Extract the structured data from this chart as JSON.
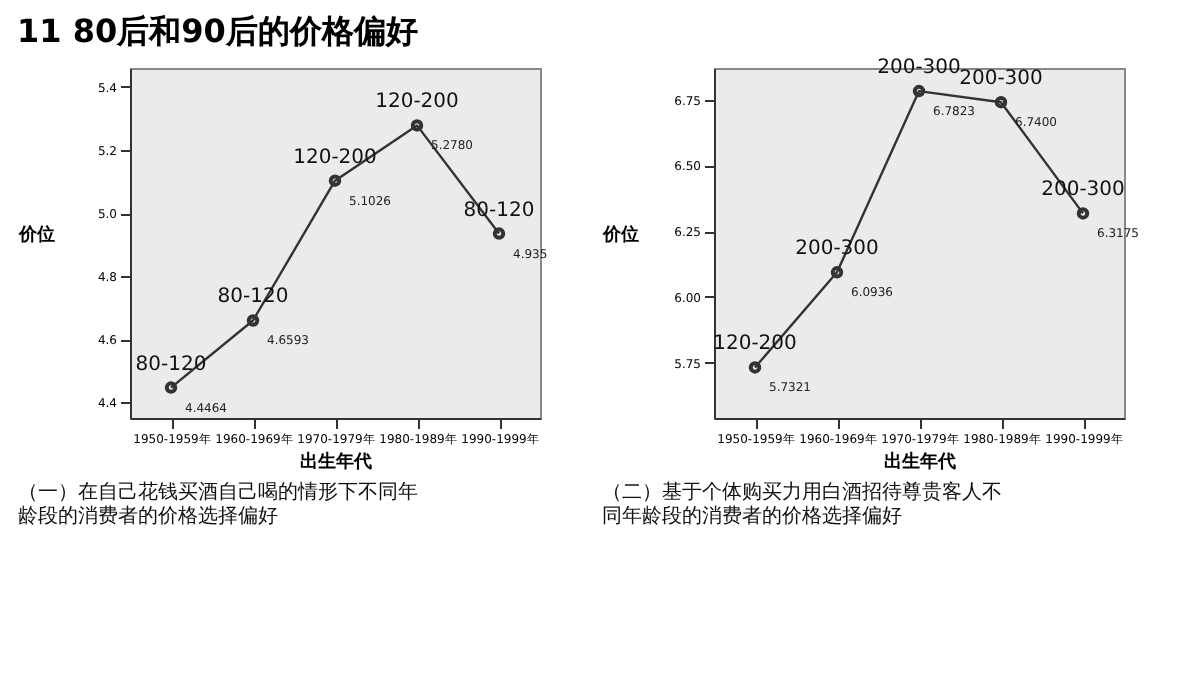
{
  "chart_data": [
    {
      "type": "line",
      "title": "11 80后和90后的价格偏好",
      "xlabel": "出生年代",
      "ylabel": "价位",
      "categories": [
        "1950-1959年",
        "1960-1969年",
        "1970-1979年",
        "1980-1989年",
        "1990-1999年"
      ],
      "series": [
        {
          "color": "#333333",
          "values": [
            4.4464,
            4.6593,
            5.1026,
            5.278,
            4.935
          ]
        }
      ],
      "ylim": [
        4.35,
        5.46
      ],
      "yticks": [
        4.4,
        4.6,
        4.8,
        {
          "value": 5,
          "label": "5.0"
        },
        5.2,
        5.4
      ],
      "marker": "circle",
      "line_style": "solid",
      "grid": false,
      "legend": false,
      "value_labels": [
        "4.4464",
        "4.6593",
        "5.1026",
        "5.2780",
        "4.935"
      ],
      "annotations": [
        {
          "text": "80-120",
          "x": "1950-1959年",
          "y": 4.4464
        },
        {
          "text": "80-120",
          "x": "1960-1969年",
          "y": 4.6593
        },
        {
          "text": "120-200",
          "x": "1970-1979年",
          "y": 5.1026
        },
        {
          "text": "120-200",
          "x": "1980-1989年",
          "y": 5.278
        },
        {
          "text": "80-120",
          "x": "1990-1999年",
          "y": 4.935
        },
        "（一）在自己花钱买酒自己喝的情形下不同年龄段的消费者的价格选择偏好"
      ]
    },
    {
      "type": "line",
      "xlabel": "出生年代",
      "ylabel": "价位",
      "categories": [
        "1950-1959年",
        "1960-1969年",
        "1970-1979年",
        "1980-1989年",
        "1990-1999年"
      ],
      "series": [
        {
          "color": "#333333",
          "values": [
            5.7321,
            6.0936,
            6.7823,
            6.74,
            6.3175
          ]
        }
      ],
      "ylim": [
        5.54,
        6.87
      ],
      "yticks": [
        5.75,
        {
          "value": 6,
          "label": "6.00"
        },
        6.25,
        {
          "value": 6.5,
          "label": "6.50"
        },
        6.75
      ],
      "marker": "circle",
      "line_style": "solid",
      "grid": false,
      "legend": false,
      "value_labels": [
        "5.7321",
        "6.0936",
        "6.7823",
        "6.7400",
        "6.3175"
      ],
      "annotations": [
        {
          "text": "120-200",
          "x": "1950-1959年",
          "y": 5.7321
        },
        {
          "text": "200-300",
          "x": "1960-1969年",
          "y": 6.0936
        },
        {
          "text": "200-300",
          "x": "1970-1979年",
          "y": 6.7823
        },
        {
          "text": "200-300",
          "x": "1980-1989年",
          "y": 6.74
        },
        {
          "text": "200-300",
          "x": "1990-1999年",
          "y": 6.3175
        },
        "（二）基于个体购买力用白酒招待尊贵客人不同年龄段的消费者的价格选择偏好"
      ]
    }
  ]
}
